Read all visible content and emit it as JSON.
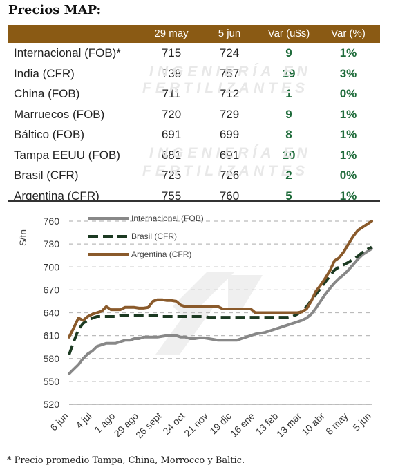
{
  "title": "Precios MAP:",
  "table": {
    "headers": [
      "",
      "29 may",
      "5 jun",
      "Var (u$s)",
      "Var (%)"
    ],
    "rows": [
      {
        "name": "Internacional (FOB)*",
        "may29": "715",
        "jun5": "724",
        "var_usd": "9",
        "var_pct": "1%"
      },
      {
        "name": "India (CFR)",
        "may29": "738",
        "jun5": "757",
        "var_usd": "19",
        "var_pct": "3%"
      },
      {
        "name": "China (FOB)",
        "may29": "711",
        "jun5": "712",
        "var_usd": "1",
        "var_pct": "0%"
      },
      {
        "name": "Marruecos (FOB)",
        "may29": "720",
        "jun5": "729",
        "var_usd": "9",
        "var_pct": "1%"
      },
      {
        "name": "Báltico (FOB)",
        "may29": "691",
        "jun5": "699",
        "var_usd": "8",
        "var_pct": "1%"
      },
      {
        "name": "Tampa EEUU (FOB)",
        "may29": "681",
        "jun5": "691",
        "var_usd": "10",
        "var_pct": "1%"
      },
      {
        "name": "Brasil (CFR)",
        "may29": "725",
        "jun5": "726",
        "var_usd": "2",
        "var_pct": "0%"
      },
      {
        "name": "Argentina (CFR)",
        "may29": "755",
        "jun5": "760",
        "var_usd": "5",
        "var_pct": "1%"
      }
    ]
  },
  "watermark": [
    "INGENIERÍA EN",
    "FERTILIZANTES"
  ],
  "chart_data": {
    "type": "line",
    "ylabel": "$/tn",
    "ylim": [
      520,
      760
    ],
    "yticks": [
      520,
      550,
      580,
      610,
      640,
      670,
      700,
      730,
      760
    ],
    "x_ticks": [
      "6 jun",
      "4 jul",
      "1 ago",
      "29 ago",
      "26 sept",
      "24 oct",
      "21 nov",
      "19 dic",
      "16 ene",
      "13 feb",
      "13 mar",
      "10 abr",
      "8 may",
      "5 jun"
    ],
    "grid": "horizontal dashed",
    "legend_position": "top-left",
    "series": [
      {
        "name": "Internacional (FOB)",
        "color": "#888888",
        "style": "solid",
        "values": [
          560,
          566,
          572,
          580,
          586,
          590,
          596,
          598,
          600,
          600,
          600,
          602,
          604,
          604,
          606,
          606,
          608,
          608,
          608,
          608,
          609,
          610,
          610,
          610,
          608,
          608,
          606,
          606,
          607,
          607,
          606,
          605,
          604,
          604,
          604,
          604,
          604,
          606,
          608,
          610,
          612,
          613,
          614,
          616,
          618,
          620,
          622,
          624,
          626,
          628,
          630,
          633,
          638,
          646,
          655,
          664,
          672,
          679,
          685,
          690,
          696,
          703,
          710,
          716,
          720,
          724
        ]
      },
      {
        "name": "Brasil (CFR)",
        "color": "#1c3a22",
        "style": "dashed",
        "values": [
          585,
          602,
          618,
          626,
          630,
          633,
          635,
          635,
          635,
          635,
          635,
          636,
          636,
          636,
          636,
          636,
          636,
          636,
          636,
          636,
          635,
          635,
          635,
          635,
          635,
          635,
          635,
          635,
          635,
          635,
          634,
          634,
          634,
          634,
          634,
          634,
          634,
          634,
          634,
          634,
          634,
          634,
          634,
          634,
          634,
          634,
          634,
          634,
          635,
          638,
          642,
          648,
          656,
          664,
          672,
          680,
          688,
          696,
          700,
          703,
          706,
          710,
          714,
          719,
          723,
          726
        ]
      },
      {
        "name": "Argentina (CFR)",
        "color": "#8a5a2b",
        "style": "solid",
        "values": [
          608,
          620,
          633,
          630,
          635,
          638,
          640,
          642,
          648,
          644,
          644,
          644,
          647,
          647,
          647,
          646,
          646,
          647,
          655,
          657,
          657,
          656,
          656,
          655,
          650,
          648,
          648,
          648,
          648,
          648,
          648,
          648,
          648,
          645,
          645,
          645,
          645,
          645,
          645,
          645,
          640,
          640,
          640,
          640,
          640,
          640,
          640,
          640,
          640,
          640,
          641,
          645,
          655,
          668,
          676,
          685,
          695,
          708,
          712,
          720,
          730,
          740,
          748,
          752,
          756,
          760
        ]
      }
    ]
  },
  "footnote": "* Precio promedio Tampa, China, Morrocco y Baltic."
}
